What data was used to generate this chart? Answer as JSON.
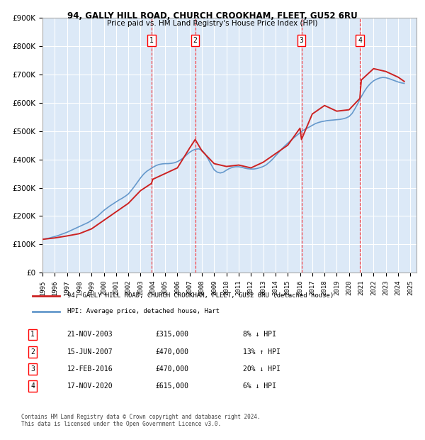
{
  "title1": "94, GALLY HILL ROAD, CHURCH CROOKHAM, FLEET, GU52 6RU",
  "title2": "Price paid vs. HM Land Registry's House Price Index (HPI)",
  "ylabel": "",
  "xlabel": "",
  "background_color": "#dce9f7",
  "plot_bg": "#dce9f7",
  "sale_label": "94, GALLY HILL ROAD, CHURCH CROOKHAM, FLEET, GU52 6RU (detached house)",
  "hpi_label": "HPI: Average price, detached house, Hart",
  "footer": "Contains HM Land Registry data © Crown copyright and database right 2024.\nThis data is licensed under the Open Government Licence v3.0.",
  "transactions": [
    {
      "num": 1,
      "date": "21-NOV-2003",
      "price": "£315,000",
      "pct": "8%",
      "dir": "↓",
      "year": 2003.88
    },
    {
      "num": 2,
      "date": "15-JUN-2007",
      "price": "£470,000",
      "pct": "13%",
      "dir": "↑",
      "year": 2007.45
    },
    {
      "num": 3,
      "date": "12-FEB-2016",
      "price": "£470,000",
      "pct": "20%",
      "dir": "↓",
      "year": 2016.12
    },
    {
      "num": 4,
      "date": "17-NOV-2020",
      "price": "£615,000",
      "pct": "6%",
      "dir": "↓",
      "year": 2020.88
    }
  ],
  "hpi_x": [
    1995,
    1995.25,
    1995.5,
    1995.75,
    1996,
    1996.25,
    1996.5,
    1996.75,
    1997,
    1997.25,
    1997.5,
    1997.75,
    1998,
    1998.25,
    1998.5,
    1998.75,
    1999,
    1999.25,
    1999.5,
    1999.75,
    2000,
    2000.25,
    2000.5,
    2000.75,
    2001,
    2001.25,
    2001.5,
    2001.75,
    2002,
    2002.25,
    2002.5,
    2002.75,
    2003,
    2003.25,
    2003.5,
    2003.75,
    2004,
    2004.25,
    2004.5,
    2004.75,
    2005,
    2005.25,
    2005.5,
    2005.75,
    2006,
    2006.25,
    2006.5,
    2006.75,
    2007,
    2007.25,
    2007.5,
    2007.75,
    2008,
    2008.25,
    2008.5,
    2008.75,
    2009,
    2009.25,
    2009.5,
    2009.75,
    2010,
    2010.25,
    2010.5,
    2010.75,
    2011,
    2011.25,
    2011.5,
    2011.75,
    2012,
    2012.25,
    2012.5,
    2012.75,
    2013,
    2013.25,
    2013.5,
    2013.75,
    2014,
    2014.25,
    2014.5,
    2014.75,
    2015,
    2015.25,
    2015.5,
    2015.75,
    2016,
    2016.25,
    2016.5,
    2016.75,
    2017,
    2017.25,
    2017.5,
    2017.75,
    2018,
    2018.25,
    2018.5,
    2018.75,
    2019,
    2019.25,
    2019.5,
    2019.75,
    2020,
    2020.25,
    2020.5,
    2020.75,
    2021,
    2021.25,
    2021.5,
    2021.75,
    2022,
    2022.25,
    2022.5,
    2022.75,
    2023,
    2023.25,
    2023.5,
    2023.75,
    2024,
    2024.25,
    2024.5
  ],
  "hpi_y": [
    118000,
    120000,
    122000,
    125000,
    128000,
    131000,
    135000,
    139000,
    143000,
    148000,
    153000,
    158000,
    163000,
    168000,
    173000,
    178000,
    185000,
    192000,
    200000,
    210000,
    220000,
    228000,
    236000,
    243000,
    250000,
    257000,
    263000,
    270000,
    278000,
    291000,
    305000,
    320000,
    335000,
    348000,
    358000,
    365000,
    372000,
    378000,
    382000,
    384000,
    385000,
    385000,
    386000,
    388000,
    392000,
    398000,
    406000,
    416000,
    425000,
    432000,
    436000,
    437000,
    432000,
    420000,
    402000,
    382000,
    363000,
    355000,
    352000,
    355000,
    362000,
    368000,
    372000,
    374000,
    374000,
    372000,
    369000,
    367000,
    366000,
    366000,
    368000,
    371000,
    375000,
    381000,
    390000,
    400000,
    412000,
    424000,
    436000,
    447000,
    457000,
    467000,
    476000,
    485000,
    494000,
    502000,
    508000,
    514000,
    520000,
    526000,
    530000,
    533000,
    535000,
    537000,
    538000,
    539000,
    540000,
    541000,
    543000,
    546000,
    551000,
    562000,
    580000,
    600000,
    621000,
    640000,
    656000,
    668000,
    677000,
    683000,
    687000,
    689000,
    688000,
    685000,
    681000,
    677000,
    673000,
    670000,
    668000
  ],
  "price_x": [
    1995,
    1996,
    1997,
    1998,
    1999,
    2000,
    2001,
    2002,
    2003,
    2003.88,
    2004,
    2005,
    2006,
    2007,
    2007.45,
    2008,
    2009,
    2010,
    2011,
    2012,
    2013,
    2014,
    2015,
    2016,
    2016.12,
    2017,
    2018,
    2019,
    2020,
    2020.88,
    2021,
    2022,
    2023,
    2024,
    2024.5
  ],
  "price_y": [
    118000,
    123000,
    130000,
    138000,
    155000,
    185000,
    215000,
    245000,
    290000,
    315000,
    330000,
    350000,
    370000,
    440000,
    470000,
    430000,
    385000,
    375000,
    380000,
    370000,
    390000,
    420000,
    450000,
    510000,
    470000,
    560000,
    590000,
    570000,
    575000,
    615000,
    680000,
    720000,
    710000,
    690000,
    675000
  ],
  "ylim": [
    0,
    900000
  ],
  "yticks": [
    0,
    100000,
    200000,
    300000,
    400000,
    500000,
    600000,
    700000,
    800000,
    900000
  ],
  "xlim": [
    1995,
    2025.5
  ],
  "xticks": [
    1995,
    1996,
    1997,
    1998,
    1999,
    2000,
    2001,
    2002,
    2003,
    2004,
    2005,
    2006,
    2007,
    2008,
    2009,
    2010,
    2011,
    2012,
    2013,
    2014,
    2015,
    2016,
    2017,
    2018,
    2019,
    2020,
    2021,
    2022,
    2023,
    2024,
    2025
  ]
}
